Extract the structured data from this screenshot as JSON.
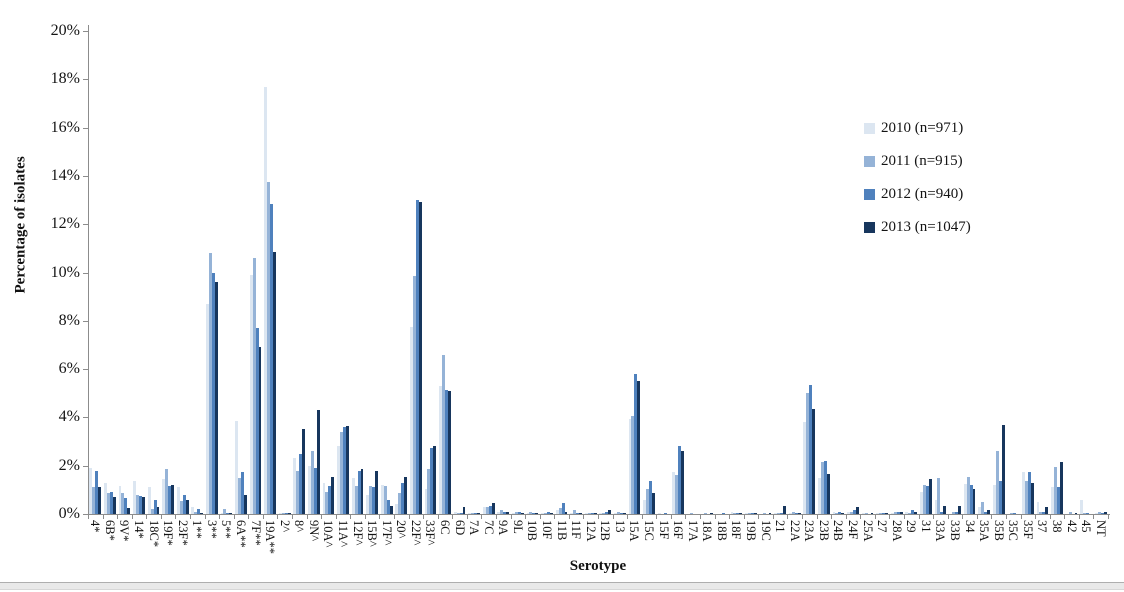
{
  "chart_data": {
    "type": "bar",
    "title": "",
    "xlabel": "Serotype",
    "ylabel": "Percentage of isolates",
    "ylim": [
      0,
      20
    ],
    "ytick_step": 2,
    "ytick_labels": [
      "0%",
      "2%",
      "4%",
      "6%",
      "8%",
      "10%",
      "12%",
      "14%",
      "16%",
      "18%",
      "20%"
    ],
    "grid": false,
    "legend_position": "inside-top-right",
    "categories": [
      "4*",
      "6B*",
      "9V*",
      "14*",
      "18C*",
      "19F*",
      "23F*",
      "1**",
      "3**",
      "5**",
      "6A**",
      "7F**",
      "19A**",
      "2^",
      "8^",
      "9N^",
      "10A^",
      "11A^",
      "12F^",
      "15B^",
      "17F^",
      "20^",
      "22F^",
      "33F^",
      "6C",
      "6D",
      "7A",
      "7C",
      "9A",
      "9L",
      "10B",
      "10F",
      "11B",
      "11F",
      "12A",
      "12B",
      "13",
      "15A",
      "15C",
      "15F",
      "16F",
      "17A",
      "18A",
      "18B",
      "18F",
      "19B",
      "19C",
      "21",
      "22A",
      "23A",
      "23B",
      "24B",
      "24F",
      "25A",
      "27",
      "28A",
      "29",
      "31",
      "33A",
      "33B",
      "34",
      "35A",
      "35B",
      "35C",
      "35F",
      "37",
      "38",
      "42",
      "45",
      "NT"
    ],
    "series": [
      {
        "name": "2010 (n=971)",
        "color": "#dce6f1",
        "values": [
          1.9,
          1.3,
          1.15,
          1.35,
          1.1,
          1.45,
          1.1,
          0.3,
          8.7,
          0.05,
          3.85,
          9.9,
          17.7,
          0.05,
          2.3,
          2.0,
          1.3,
          2.8,
          1.5,
          0.8,
          1.2,
          0.4,
          7.75,
          1.05,
          5.3,
          0.1,
          0.05,
          0.3,
          0.1,
          0.05,
          0.05,
          0.05,
          0.15,
          0.05,
          0.05,
          0.05,
          0.05,
          3.95,
          0.6,
          0.05,
          1.75,
          0,
          0,
          0,
          0.1,
          0.05,
          0,
          0.05,
          0.05,
          3.8,
          1.5,
          0.1,
          0.1,
          0.05,
          0.05,
          0.05,
          0.1,
          0.9,
          0.6,
          0,
          1.25,
          0.3,
          1.2,
          0,
          1.75,
          0.5,
          1.1,
          0,
          0.6,
          0.05
        ]
      },
      {
        "name": "2011 (n=915)",
        "color": "#95b3d7",
        "values": [
          1.1,
          0.85,
          0.85,
          0.8,
          0.2,
          1.85,
          0.55,
          0.1,
          10.8,
          0.2,
          1.5,
          10.6,
          13.75,
          0.05,
          1.8,
          2.6,
          0.9,
          3.4,
          1.15,
          1.15,
          1.15,
          0.85,
          9.85,
          1.85,
          6.6,
          0.05,
          0.05,
          0.3,
          0.15,
          0.1,
          0.1,
          0.05,
          0.25,
          0.15,
          0.05,
          0.05,
          0.1,
          4.05,
          1.05,
          0,
          1.6,
          0.05,
          0.05,
          0,
          0.05,
          0.05,
          0.05,
          0.05,
          0.1,
          5.0,
          2.15,
          0.05,
          0.1,
          0.05,
          0.05,
          0.1,
          0.05,
          1.2,
          1.5,
          0.1,
          1.55,
          0.5,
          2.6,
          0.05,
          1.35,
          0.1,
          1.95,
          0.1,
          0.05,
          0.1
        ]
      },
      {
        "name": "2012 (n=940)",
        "color": "#4f81bd",
        "values": [
          1.8,
          0.9,
          0.65,
          0.75,
          0.6,
          1.15,
          0.8,
          0.2,
          10.0,
          0.05,
          1.75,
          7.7,
          12.85,
          0.05,
          2.5,
          1.9,
          1.15,
          3.6,
          1.8,
          1.1,
          0.6,
          1.3,
          13.0,
          2.75,
          5.15,
          0.05,
          0.05,
          0.35,
          0.1,
          0.1,
          0.05,
          0.1,
          0.45,
          0.05,
          0.05,
          0.1,
          0.05,
          5.8,
          1.35,
          0.05,
          2.8,
          0,
          0,
          0.05,
          0.05,
          0.05,
          0,
          0.05,
          0.05,
          5.35,
          2.2,
          0.1,
          0.15,
          0,
          0.05,
          0.1,
          0.15,
          1.15,
          0.1,
          0.1,
          1.2,
          0.1,
          1.35,
          0.05,
          1.75,
          0.1,
          1.1,
          0,
          0.05,
          0.05
        ]
      },
      {
        "name": "2013 (n=1047)",
        "color": "#17365d",
        "values": [
          1.1,
          0.7,
          0.25,
          0.7,
          0.3,
          1.2,
          0.6,
          0.05,
          9.6,
          0.05,
          0.8,
          6.9,
          10.85,
          0.05,
          3.5,
          4.3,
          1.55,
          3.65,
          1.85,
          1.8,
          0.35,
          1.55,
          12.9,
          2.8,
          5.1,
          0.3,
          0.05,
          0.45,
          0.1,
          0.05,
          0.05,
          0.05,
          0.1,
          0.05,
          0.05,
          0.15,
          0.05,
          5.5,
          0.85,
          0,
          2.6,
          0,
          0.05,
          0,
          0.05,
          0.05,
          0.05,
          0.35,
          0.05,
          4.35,
          1.65,
          0.05,
          0.3,
          0.05,
          0.05,
          0.1,
          0.1,
          1.45,
          0.35,
          0.35,
          1.05,
          0.15,
          3.7,
          0,
          1.3,
          0.3,
          2.15,
          0.05,
          0,
          0.1
        ]
      }
    ]
  },
  "axis": {
    "x_title": "Serotype",
    "y_title": "Percentage of isolates"
  }
}
